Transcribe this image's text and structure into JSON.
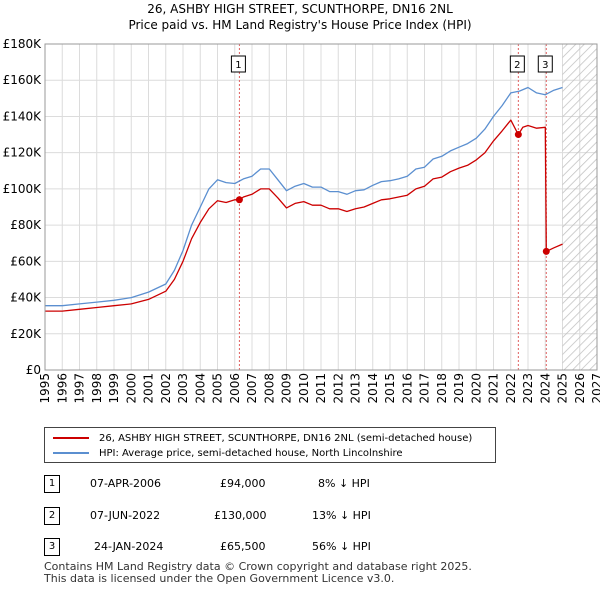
{
  "header": {
    "title": "26, ASHBY HIGH STREET, SCUNTHORPE, DN16 2NL",
    "subtitle": "Price paid vs. HM Land Registry's House Price Index (HPI)"
  },
  "colors": {
    "property": "#cc0000",
    "hpi": "#5b8fd0",
    "hatch": "#bfbfbf",
    "marker_line": "#e06060"
  },
  "chart_data": {
    "type": "line",
    "title": "Price paid vs. HM Land Registry's House Price Index (HPI)",
    "xlim": [
      1995,
      2027
    ],
    "ylim": [
      0,
      180000
    ],
    "y_ticks": [
      {
        "value": 0,
        "label": "£0"
      },
      {
        "value": 20000,
        "label": "£20K"
      },
      {
        "value": 40000,
        "label": "£40K"
      },
      {
        "value": 60000,
        "label": "£60K"
      },
      {
        "value": 80000,
        "label": "£80K"
      },
      {
        "value": 100000,
        "label": "£100K"
      },
      {
        "value": 120000,
        "label": "£120K"
      },
      {
        "value": 140000,
        "label": "£140K"
      },
      {
        "value": 160000,
        "label": "£160K"
      },
      {
        "value": 180000,
        "label": "£180K"
      }
    ],
    "x_ticks": [
      "1995",
      "1996",
      "1997",
      "1998",
      "1999",
      "2000",
      "2001",
      "2002",
      "2003",
      "2004",
      "2005",
      "2006",
      "2007",
      "2008",
      "2009",
      "2010",
      "2011",
      "2012",
      "2013",
      "2014",
      "2015",
      "2016",
      "2017",
      "2018",
      "2019",
      "2020",
      "2021",
      "2022",
      "2023",
      "2024",
      "2025",
      "2026",
      "2027"
    ],
    "future_shade_from": 2025.0,
    "series": [
      {
        "name": "HPI: Average price, semi-detached house, North Lincolnshire",
        "color": "#5b8fd0",
        "x": [
          1995.0,
          1996.0,
          1997.0,
          1998.0,
          1999.0,
          2000.0,
          2001.0,
          2002.0,
          2002.5,
          2003.0,
          2003.5,
          2004.0,
          2004.5,
          2005.0,
          2005.5,
          2006.0,
          2006.5,
          2007.0,
          2007.5,
          2008.0,
          2008.5,
          2009.0,
          2009.5,
          2010.0,
          2010.5,
          2011.0,
          2011.5,
          2012.0,
          2012.5,
          2013.0,
          2013.5,
          2014.0,
          2014.5,
          2015.0,
          2015.5,
          2016.0,
          2016.5,
          2017.0,
          2017.5,
          2018.0,
          2018.5,
          2019.0,
          2019.5,
          2020.0,
          2020.5,
          2021.0,
          2021.5,
          2022.0,
          2022.5,
          2023.0,
          2023.5,
          2024.0,
          2024.5,
          2025.0
        ],
        "y": [
          35500,
          35500,
          36500,
          37500,
          38500,
          40000,
          43000,
          47500,
          55000,
          66000,
          80000,
          90000,
          100000,
          105000,
          103500,
          103000,
          105500,
          107000,
          111000,
          111000,
          105000,
          99000,
          101500,
          103000,
          101000,
          101000,
          98500,
          98500,
          97000,
          99000,
          99500,
          102000,
          104000,
          104500,
          105500,
          107000,
          111000,
          112000,
          116500,
          118000,
          121000,
          123000,
          125000,
          128000,
          133000,
          140000,
          146000,
          153000,
          154000,
          156000,
          153000,
          152000,
          154500,
          156000
        ]
      },
      {
        "name": "26, ASHBY HIGH STREET, SCUNTHORPE, DN16 2NL (semi-detached house)",
        "color": "#cc0000",
        "x": [
          1995.0,
          1996.0,
          1997.0,
          1998.0,
          1999.0,
          2000.0,
          2001.0,
          2002.0,
          2002.5,
          2003.0,
          2003.5,
          2004.0,
          2004.5,
          2005.0,
          2005.5,
          2006.0,
          2006.27,
          2006.5,
          2007.0,
          2007.5,
          2008.0,
          2008.5,
          2009.0,
          2009.5,
          2010.0,
          2010.5,
          2011.0,
          2011.5,
          2012.0,
          2012.5,
          2013.0,
          2013.5,
          2014.0,
          2014.5,
          2015.0,
          2015.5,
          2016.0,
          2016.5,
          2017.0,
          2017.5,
          2018.0,
          2018.5,
          2019.0,
          2019.5,
          2020.0,
          2020.5,
          2021.0,
          2021.5,
          2022.0,
          2022.44,
          2022.7,
          2023.0,
          2023.5,
          2024.0,
          2024.06,
          2024.5,
          2025.0
        ],
        "y": [
          32500,
          32500,
          33500,
          34500,
          35500,
          36500,
          39000,
          43500,
          50000,
          60000,
          72500,
          81500,
          89000,
          93500,
          92500,
          94000,
          94000,
          95500,
          97000,
          100000,
          100000,
          95000,
          89500,
          92000,
          93000,
          91000,
          91000,
          89000,
          89000,
          87500,
          89000,
          90000,
          92000,
          94000,
          94500,
          95500,
          96500,
          100000,
          101500,
          105500,
          106500,
          109500,
          111500,
          113000,
          116000,
          120000,
          126500,
          132000,
          138000,
          130000,
          134000,
          135000,
          133500,
          134000,
          65500,
          67500,
          69500
        ]
      }
    ],
    "sales": [
      {
        "id": "1",
        "x": 2006.27,
        "price": 94000
      },
      {
        "id": "2",
        "x": 2022.44,
        "price": 130000
      },
      {
        "id": "3",
        "x": 2024.06,
        "price": 65500
      }
    ]
  },
  "legend": {
    "property_label": "26, ASHBY HIGH STREET, SCUNTHORPE, DN16 2NL (semi-detached house)",
    "hpi_label": "HPI: Average price, semi-detached house, North Lincolnshire"
  },
  "transactions": [
    {
      "num": "1",
      "date": "07-APR-2006",
      "price": "£94,000",
      "hpi": "8% ↓ HPI"
    },
    {
      "num": "2",
      "date": "07-JUN-2022",
      "price": "£130,000",
      "hpi": "13% ↓ HPI"
    },
    {
      "num": "3",
      "date": "24-JAN-2024",
      "price": "£65,500",
      "hpi": "56% ↓ HPI"
    }
  ],
  "footer": {
    "line1": "Contains HM Land Registry data © Crown copyright and database right 2025.",
    "line2": "This data is licensed under the Open Government Licence v3.0."
  }
}
